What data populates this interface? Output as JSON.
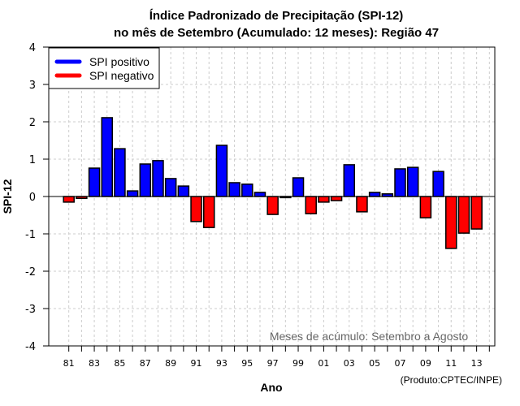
{
  "chart_data": {
    "type": "bar",
    "title": "Índice Padronizado de Precipitação (SPI-12)",
    "subtitle": "no mês de Setembro (Acumulado: 12 meses): Região 47",
    "xlabel": "Ano",
    "ylabel": "SPI-12",
    "ylim": [
      -4,
      4
    ],
    "xlim": [
      1980,
      2015
    ],
    "yticks": [
      "-4",
      "-3",
      "-2",
      "-1",
      "0",
      "1",
      "2",
      "3",
      "4"
    ],
    "yticks_values": [
      -4,
      -3,
      -2,
      -1,
      0,
      1,
      2,
      3,
      4
    ],
    "xticks": [
      "81",
      "83",
      "85",
      "87",
      "89",
      "91",
      "93",
      "95",
      "97",
      "99",
      "01",
      "03",
      "05",
      "07",
      "09",
      "11",
      "13"
    ],
    "xticks_years": [
      1981,
      1983,
      1985,
      1987,
      1989,
      1991,
      1993,
      1995,
      1997,
      1999,
      2001,
      2003,
      2005,
      2007,
      2009,
      2011,
      2013
    ],
    "grid": true,
    "years": [
      1981,
      1982,
      1983,
      1984,
      1985,
      1986,
      1987,
      1988,
      1989,
      1990,
      1991,
      1992,
      1993,
      1994,
      1995,
      1996,
      1997,
      1998,
      1999,
      2000,
      2001,
      2002,
      2003,
      2004,
      2005,
      2006,
      2007,
      2008,
      2009,
      2010,
      2011,
      2012,
      2013
    ],
    "values": [
      -0.15,
      -0.05,
      0.76,
      2.11,
      1.28,
      0.15,
      0.87,
      0.96,
      0.48,
      0.28,
      -0.67,
      -0.83,
      1.37,
      0.37,
      0.33,
      0.11,
      -0.48,
      -0.03,
      0.5,
      -0.46,
      -0.15,
      -0.11,
      0.85,
      -0.41,
      0.11,
      0.07,
      0.74,
      0.78,
      -0.57,
      0.67,
      -1.39,
      -0.98,
      -0.87
    ],
    "legend": {
      "placement": "top-left",
      "entries": [
        {
          "label": "SPI positivo",
          "color": "#0000ff"
        },
        {
          "label": "SPI negativo",
          "color": "#ff0000"
        }
      ]
    },
    "annotation": "Meses de acúmulo: Setembro a Agosto",
    "credit": "(Produto:CPTEC/INPE)",
    "colors": {
      "positive": "#0000ff",
      "negative": "#ff0000",
      "grid": "#cccccc",
      "annotation": "#666666"
    }
  }
}
